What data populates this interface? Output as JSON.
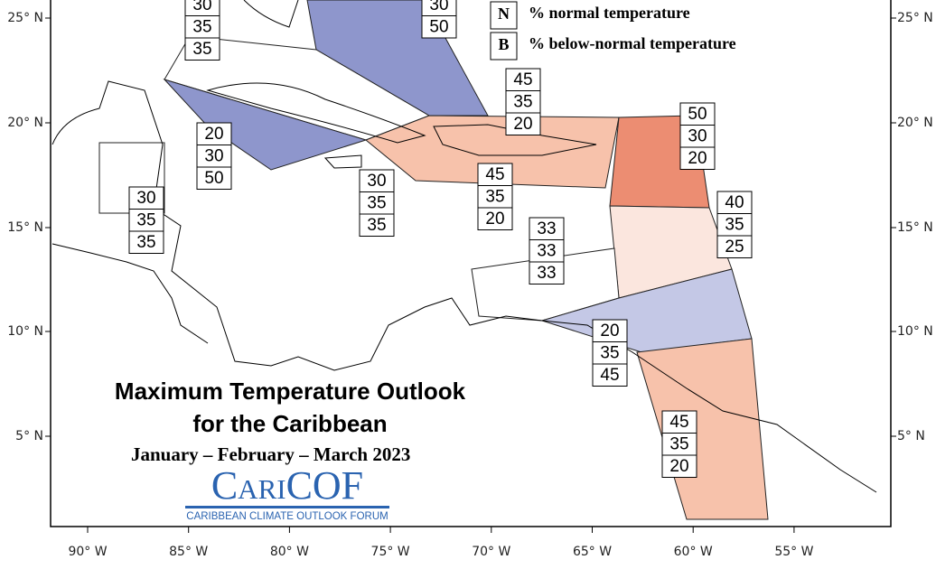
{
  "map": {
    "title": [
      "Maximum Temperature Outlook",
      "for the Caribbean"
    ],
    "subtitle": "January – February – March 2023",
    "logo": {
      "name": "CariCOF",
      "tagline": "CARIBBEAN CLIMATE OUTLOOK FORUM"
    },
    "legend": [
      {
        "key": "N",
        "label": "% normal temperature"
      },
      {
        "key": "B",
        "label": "% below-normal temperature"
      }
    ],
    "lat_labels": [
      "25° N",
      "20° N",
      "15° N",
      "10° N",
      "5° N"
    ],
    "lon_labels": [
      "90° W",
      "85° W",
      "80° W",
      "75° W",
      "70° W",
      "65° W",
      "60° W",
      "55° W"
    ],
    "regions": [
      {
        "values": [
          30,
          35,
          35
        ]
      },
      {
        "values": [
          30,
          50
        ]
      },
      {
        "values": [
          45,
          35,
          20
        ]
      },
      {
        "values": [
          20,
          30,
          50
        ]
      },
      {
        "values": [
          50,
          30,
          20
        ]
      },
      {
        "values": [
          30,
          35,
          35
        ]
      },
      {
        "values": [
          30,
          35,
          35
        ]
      },
      {
        "values": [
          45,
          35,
          20
        ]
      },
      {
        "values": [
          40,
          35,
          25
        ]
      },
      {
        "values": [
          33,
          33,
          33
        ]
      },
      {
        "values": [
          20,
          35,
          45
        ]
      },
      {
        "values": [
          45,
          35,
          20
        ]
      }
    ]
  }
}
